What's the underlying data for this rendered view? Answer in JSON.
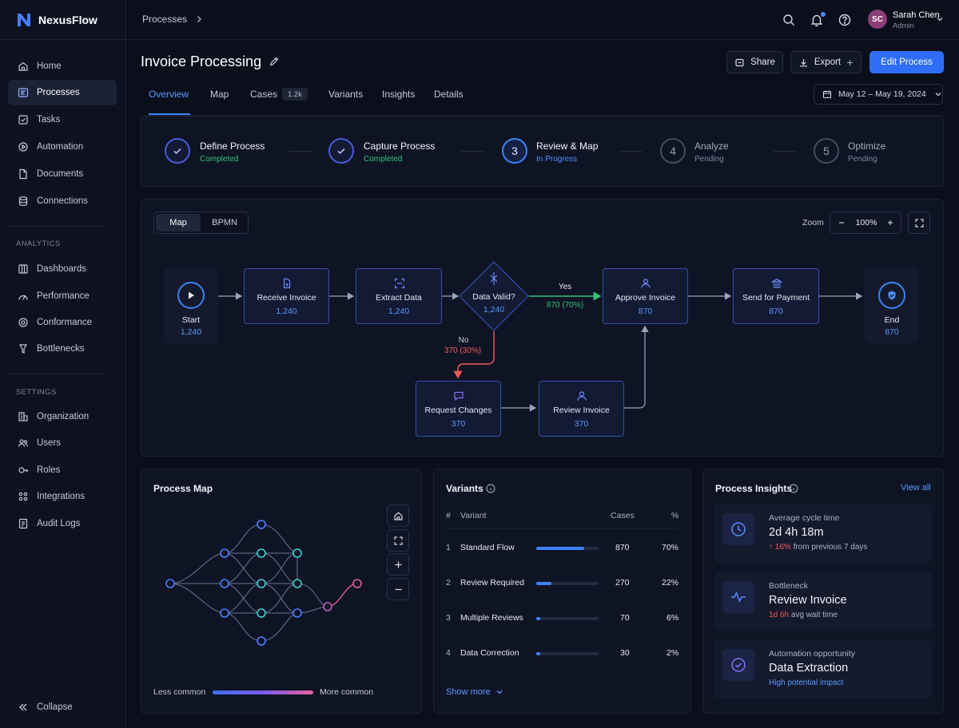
{
  "app": {
    "name": "NexusFlow"
  },
  "sidebar": {
    "items": [
      {
        "label": "Home",
        "icon": "home-icon"
      },
      {
        "label": "Processes",
        "icon": "processes-icon",
        "active": true
      },
      {
        "label": "Tasks",
        "icon": "tasks-icon"
      },
      {
        "label": "Automation",
        "icon": "automation-icon"
      },
      {
        "label": "Documents",
        "icon": "documents-icon"
      },
      {
        "label": "Connections",
        "icon": "connections-icon"
      }
    ],
    "analytics_label": "ANALYTICS",
    "analytics": [
      {
        "label": "Dashboards",
        "icon": "dashboards-icon"
      },
      {
        "label": "Performance",
        "icon": "performance-icon"
      },
      {
        "label": "Conformance",
        "icon": "conformance-icon"
      },
      {
        "label": "Bottlenecks",
        "icon": "bottlenecks-icon"
      }
    ],
    "settings_label": "SETTINGS",
    "settings": [
      {
        "label": "Organization",
        "icon": "organization-icon"
      },
      {
        "label": "Users",
        "icon": "users-icon"
      },
      {
        "label": "Roles",
        "icon": "roles-icon"
      },
      {
        "label": "Integrations",
        "icon": "integrations-icon"
      },
      {
        "label": "Audit Logs",
        "icon": "audit-logs-icon"
      }
    ],
    "collapse_label": "Collapse"
  },
  "topbar": {
    "breadcrumb": "Processes",
    "user": {
      "initials": "SC",
      "name": "Sarah Chen",
      "role": "Admin"
    }
  },
  "header": {
    "title": "Invoice Processing",
    "share_label": "Share",
    "export_label": "Export",
    "edit_label": "Edit Process"
  },
  "tabs": [
    {
      "label": "Overview",
      "active": true
    },
    {
      "label": "Map"
    },
    {
      "label": "Cases",
      "badge": "1.2k"
    },
    {
      "label": "Variants"
    },
    {
      "label": "Insights"
    },
    {
      "label": "Details"
    }
  ],
  "date_range": "May 12 – May 19, 2024",
  "steps": [
    {
      "num": "",
      "title": "Define Process",
      "status": "Completed"
    },
    {
      "num": "",
      "title": "Capture Process",
      "status": "Completed"
    },
    {
      "num": "3",
      "title": "Review & Map",
      "status": "In Progress"
    },
    {
      "num": "4",
      "title": "Analyze",
      "status": "Pending"
    },
    {
      "num": "5",
      "title": "Optimize",
      "status": "Pending"
    }
  ],
  "map": {
    "view_options": [
      "Map",
      "BPMN"
    ],
    "zoom_label": "Zoom",
    "zoom_value": "100%",
    "nodes": {
      "start": {
        "label": "Start",
        "value": "1,240"
      },
      "receive": {
        "label": "Receive Invoice",
        "value": "1,240"
      },
      "extract": {
        "label": "Extract Data",
        "value": "1,240"
      },
      "valid": {
        "label": "Data Valid?",
        "value": "1,240"
      },
      "approve": {
        "label": "Approve Invoice",
        "value": "870"
      },
      "payment": {
        "label": "Send for Payment",
        "value": "870"
      },
      "end": {
        "label": "End",
        "value": "870"
      },
      "request": {
        "label": "Request Changes",
        "value": "370"
      },
      "review": {
        "label": "Review Invoice",
        "value": "370"
      }
    },
    "yes_label": "Yes",
    "yes_value": "870 (70%)",
    "no_label": "No",
    "no_value": "370 (30%)"
  },
  "process_map": {
    "title": "Process Map",
    "less_label": "Less common",
    "more_label": "More common"
  },
  "variants": {
    "title": "Variants",
    "headers": {
      "num": "#",
      "variant": "Variant",
      "cases": "Cases",
      "pct": "%"
    },
    "rows": [
      {
        "num": "1",
        "name": "Standard Flow",
        "cases": "870",
        "pct": "70%",
        "share": 0.7
      },
      {
        "num": "2",
        "name": "Review Required",
        "cases": "270",
        "pct": "22%",
        "share": 0.22
      },
      {
        "num": "3",
        "name": "Multiple Reviews",
        "cases": "70",
        "pct": "6%",
        "share": 0.06
      },
      {
        "num": "4",
        "name": "Data Correction",
        "cases": "30",
        "pct": "2%",
        "share": 0.02
      }
    ],
    "show_more": "Show more"
  },
  "insights": {
    "title": "Process Insights",
    "view_all": "View all",
    "cards": [
      {
        "label": "Average cycle time",
        "value": "2d 4h 18m",
        "sub_highlight": "↑ 16%",
        "sub_text": "from previous 7 days"
      },
      {
        "label": "Bottleneck",
        "value": "Review Invoice",
        "sub_highlight": "1d 6h",
        "sub_text": "avg wait time"
      },
      {
        "label": "Automation opportunity",
        "value": "Data Extraction",
        "sub_link": "High potential impact"
      }
    ]
  },
  "colors": {
    "accent": "#3b82f6",
    "success": "#34c27a",
    "danger": "#ef5a5a",
    "background": "#0b0f1c"
  }
}
